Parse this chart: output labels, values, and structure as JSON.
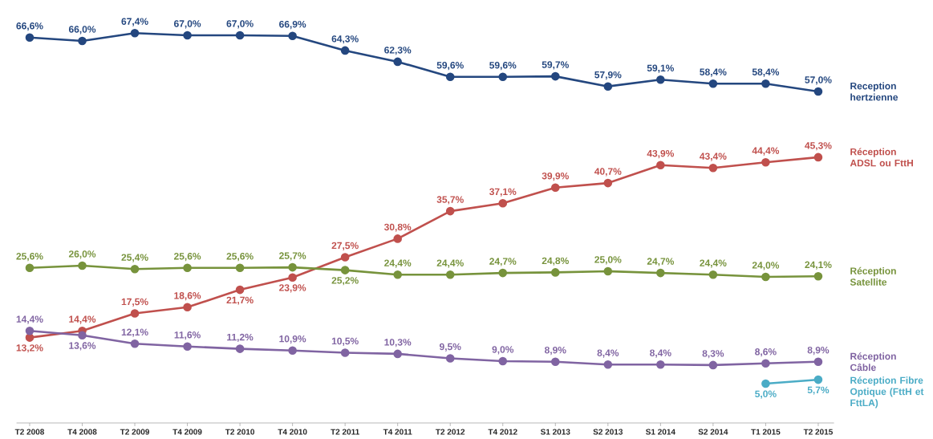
{
  "chart_data": {
    "type": "line",
    "marker": "circle",
    "tick_labels": "x",
    "categories": [
      "T2 2008",
      "T4 2008",
      "T2 2009",
      "T4 2009",
      "T2 2010",
      "T4 2010",
      "T2 2011",
      "T4 2011",
      "T2 2012",
      "T4 2012",
      "S1 2013",
      "S2 2013",
      "S1 2014",
      "S2 2014",
      "T1 2015",
      "T2 2015"
    ],
    "series": [
      {
        "name": "Reception hertzienne",
        "color": "#24477f",
        "values": [
          66.6,
          66.0,
          67.4,
          67.0,
          67.0,
          66.9,
          64.3,
          62.3,
          59.6,
          59.6,
          59.7,
          57.9,
          59.1,
          58.4,
          58.4,
          57.0
        ],
        "value_labels": [
          "66,6%",
          "66,0%",
          "67,4%",
          "67,0%",
          "67,0%",
          "66,9%",
          "64,3%",
          "62,3%",
          "59,6%",
          "59,6%",
          "59,7%",
          "57,9%",
          "59,1%",
          "58,4%",
          "58,4%",
          "57,0%"
        ]
      },
      {
        "name": "Réception ADSL ou FttH",
        "color": "#c0504d",
        "values": [
          13.2,
          14.4,
          17.5,
          18.6,
          21.7,
          23.9,
          27.5,
          30.8,
          35.7,
          37.1,
          39.9,
          40.7,
          43.9,
          43.4,
          44.4,
          45.3
        ],
        "value_labels": [
          "13,2%",
          "14,4%",
          "17,5%",
          "18,6%",
          "21,7%",
          "23,9%",
          "27,5%",
          "30,8%",
          "35,7%",
          "37,1%",
          "39,9%",
          "40,7%",
          "43,9%",
          "43,4%",
          "44,4%",
          "45,3%"
        ]
      },
      {
        "name": "Réception Satellite",
        "color": "#77933c",
        "values": [
          25.6,
          26.0,
          25.4,
          25.6,
          25.6,
          25.7,
          25.2,
          24.4,
          24.4,
          24.7,
          24.8,
          25.0,
          24.7,
          24.4,
          24.0,
          24.1
        ],
        "value_labels": [
          "25,6%",
          "26,0%",
          "25,4%",
          "25,6%",
          "25,6%",
          "25,7%",
          "25,2%",
          "24,4%",
          "24,4%",
          "24,7%",
          "24,8%",
          "25,0%",
          "24,7%",
          "24,4%",
          "24,0%",
          "24,1%"
        ]
      },
      {
        "name": "Réception Câble",
        "color": "#8064a2",
        "values": [
          14.4,
          13.6,
          12.1,
          11.6,
          11.2,
          10.9,
          10.5,
          10.3,
          9.5,
          9.0,
          8.9,
          8.4,
          8.4,
          8.3,
          8.6,
          8.9
        ],
        "value_labels": [
          "14,4%",
          "13,6%",
          "12,1%",
          "11,6%",
          "11,2%",
          "10,9%",
          "10,5%",
          "10,3%",
          "9,5%",
          "9,0%",
          "8,9%",
          "8,4%",
          "8,4%",
          "8,3%",
          "8,6%",
          "8,9%"
        ]
      },
      {
        "name": "Réception Fibre Optique (FttH et FttLA)",
        "color": "#4bacc6",
        "values": [
          null,
          null,
          null,
          null,
          null,
          null,
          null,
          null,
          null,
          null,
          null,
          null,
          null,
          null,
          5.0,
          5.7
        ],
        "value_labels": [
          null,
          null,
          null,
          null,
          null,
          null,
          null,
          null,
          null,
          null,
          null,
          null,
          null,
          null,
          "5,0%",
          "5,7%"
        ]
      }
    ]
  }
}
